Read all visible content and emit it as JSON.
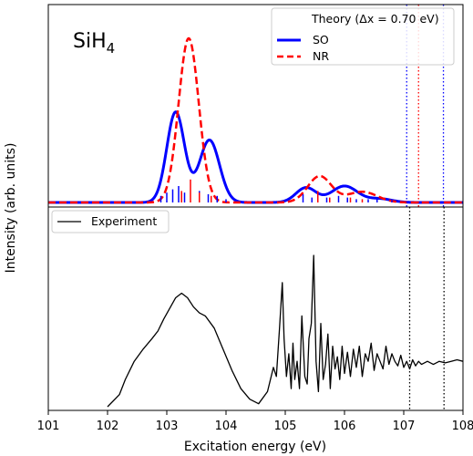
{
  "chart_data": {
    "type": "line",
    "molecule_label": {
      "base": "SiH",
      "sub": "4"
    },
    "xlabel": "Excitation energy (eV)",
    "ylabel": "Intensity (arb. units)",
    "xlim": [
      101,
      108
    ],
    "xticks": [
      "101",
      "102",
      "103",
      "104",
      "105",
      "106",
      "107",
      "108"
    ],
    "grid": false,
    "colors": {
      "SO": "#0000ff",
      "NR": "#ff0000",
      "Experiment": "#000000",
      "SO_sticks": "#0000ff",
      "NR_sticks": "#ff0000",
      "edge_SO": "#0000ff",
      "edge_NR": "#ff0000",
      "edge_exp": "#000000"
    },
    "top_panel": {
      "legend_title": "Theory (Δx = 0.70 eV)",
      "legend_placement": "top-right",
      "series": [
        {
          "name": "SO",
          "style": "solid",
          "peaks": [
            [
              103.15,
              0.55,
              0.15
            ],
            [
              103.72,
              0.38,
              0.17
            ],
            [
              105.35,
              0.09,
              0.17
            ],
            [
              106.0,
              0.1,
              0.22
            ],
            [
              106.6,
              0.022,
              0.2
            ]
          ]
        },
        {
          "name": "NR",
          "style": "dashed",
          "peaks": [
            [
              103.37,
              1.0,
              0.17
            ],
            [
              105.58,
              0.16,
              0.2
            ],
            [
              106.3,
              0.065,
              0.25
            ]
          ]
        }
      ],
      "sticks_SO": [
        [
          102.9,
          0.04
        ],
        [
          103.0,
          0.06
        ],
        [
          103.1,
          0.08
        ],
        [
          103.2,
          0.1
        ],
        [
          103.3,
          0.06
        ],
        [
          103.55,
          0.07
        ],
        [
          103.7,
          0.05
        ],
        [
          103.85,
          0.04
        ],
        [
          104.0,
          0.02
        ],
        [
          105.3,
          0.05
        ],
        [
          105.45,
          0.03
        ],
        [
          105.7,
          0.03
        ],
        [
          105.9,
          0.04
        ],
        [
          106.05,
          0.03
        ],
        [
          106.2,
          0.02
        ],
        [
          106.4,
          0.02
        ],
        [
          106.55,
          0.02
        ],
        [
          106.8,
          0.015
        ]
      ],
      "sticks_NR": [
        [
          103.25,
          0.07
        ],
        [
          103.4,
          0.14
        ],
        [
          103.55,
          0.06
        ],
        [
          103.75,
          0.04
        ],
        [
          105.55,
          0.07
        ],
        [
          105.75,
          0.03
        ],
        [
          106.1,
          0.03
        ],
        [
          106.3,
          0.02
        ]
      ],
      "edges": {
        "SO": [
          107.05,
          107.67
        ],
        "NR": [
          107.25
        ]
      }
    },
    "bottom_panel": {
      "legend": "Experiment",
      "legend_placement": "top-left",
      "edges": [
        107.1,
        107.68
      ],
      "series": [
        {
          "name": "Experiment",
          "x": [
            102.0,
            102.2,
            102.3,
            102.45,
            102.6,
            102.75,
            102.85,
            102.95,
            103.05,
            103.15,
            103.25,
            103.35,
            103.45,
            103.55,
            103.65,
            103.8,
            103.95,
            104.1,
            104.25,
            104.4,
            104.55,
            104.7,
            104.8,
            104.85,
            104.9,
            104.95,
            104.98,
            105.02,
            105.06,
            105.1,
            105.13,
            105.16,
            105.2,
            105.24,
            105.28,
            105.33,
            105.37,
            105.4,
            105.44,
            105.48,
            105.52,
            105.56,
            105.6,
            105.64,
            105.68,
            105.72,
            105.76,
            105.8,
            105.84,
            105.88,
            105.92,
            105.96,
            106.0,
            106.05,
            106.1,
            106.15,
            106.2,
            106.25,
            106.3,
            106.35,
            106.4,
            106.45,
            106.5,
            106.55,
            106.6,
            106.65,
            106.7,
            106.75,
            106.8,
            106.85,
            106.9,
            106.95,
            107.0,
            107.05,
            107.1,
            107.15,
            107.2,
            107.25,
            107.3,
            107.4,
            107.5,
            107.6,
            107.7,
            107.8,
            107.9,
            108.0
          ],
          "y": [
            0.0,
            0.08,
            0.18,
            0.3,
            0.38,
            0.45,
            0.5,
            0.58,
            0.65,
            0.72,
            0.75,
            0.72,
            0.66,
            0.62,
            0.6,
            0.52,
            0.38,
            0.24,
            0.12,
            0.05,
            0.02,
            0.1,
            0.26,
            0.2,
            0.5,
            0.82,
            0.45,
            0.2,
            0.35,
            0.12,
            0.42,
            0.18,
            0.3,
            0.12,
            0.6,
            0.2,
            0.15,
            0.45,
            0.55,
            1.0,
            0.3,
            0.1,
            0.55,
            0.18,
            0.28,
            0.48,
            0.12,
            0.4,
            0.25,
            0.33,
            0.18,
            0.4,
            0.22,
            0.36,
            0.2,
            0.38,
            0.26,
            0.4,
            0.2,
            0.35,
            0.3,
            0.42,
            0.24,
            0.35,
            0.3,
            0.25,
            0.4,
            0.28,
            0.35,
            0.3,
            0.27,
            0.34,
            0.26,
            0.3,
            0.25,
            0.31,
            0.27,
            0.3,
            0.28,
            0.3,
            0.28,
            0.3,
            0.29,
            0.3,
            0.31,
            0.3
          ]
        }
      ]
    }
  }
}
